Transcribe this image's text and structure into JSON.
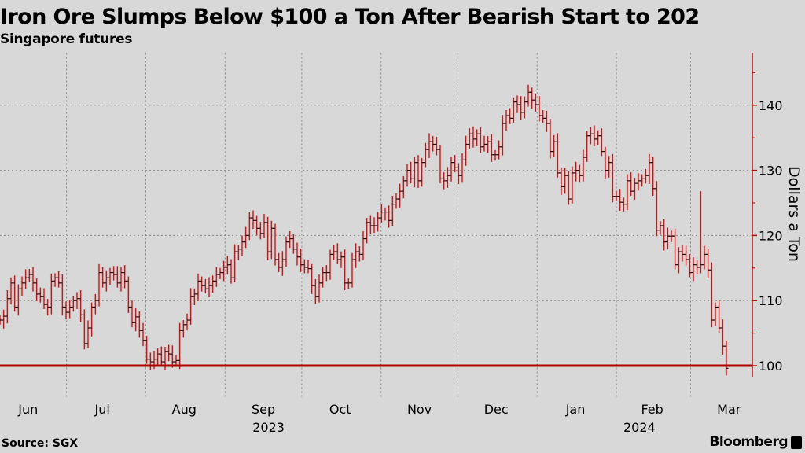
{
  "chart_data": {
    "type": "ohlc-bar",
    "title": "Iron Ore Slumps Below $100 a Ton After Bearish Start to 202",
    "subtitle": "Singapore futures",
    "source": "Source: SGX",
    "brand": "Bloomberg",
    "ylabel": "Dollars a Ton",
    "ylim": [
      99,
      148
    ],
    "yticks": [
      100,
      110,
      120,
      130,
      140
    ],
    "y_minor_ticks": [
      105,
      115,
      125,
      135,
      145
    ],
    "reference_line": 100,
    "grid": true,
    "colors": {
      "bars": "#9e1b1b",
      "glow": "#f0a0a0",
      "axis": "#b01010",
      "reference": "#b00000",
      "grid": "#888888"
    },
    "x_range": [
      "2023-06-05",
      "2024-03-19"
    ],
    "first_bar_date": "2023-06-05",
    "last_bar_date": "2024-03-15",
    "month_labels": [
      {
        "label": "Jun",
        "date": "2023-06-16"
      },
      {
        "label": "Jul",
        "date": "2023-07-15"
      },
      {
        "label": "Aug",
        "date": "2023-08-16"
      },
      {
        "label": "Sep",
        "date": "2023-09-16"
      },
      {
        "label": "Oct",
        "date": "2023-10-16"
      },
      {
        "label": "Nov",
        "date": "2023-11-16"
      },
      {
        "label": "Dec",
        "date": "2023-12-16"
      },
      {
        "label": "Jan",
        "date": "2024-01-16"
      },
      {
        "label": "Feb",
        "date": "2024-02-15"
      },
      {
        "label": "Mar",
        "date": "2024-03-16"
      }
    ],
    "year_labels": [
      {
        "label": "2023",
        "date": "2023-09-18"
      },
      {
        "label": "2024",
        "date": "2024-02-10"
      }
    ],
    "gridline_dates": [
      "2023-07-01",
      "2023-08-01",
      "2023-09-01",
      "2023-10-01",
      "2023-11-01",
      "2023-12-01",
      "2024-01-01",
      "2024-02-01",
      "2024-03-01"
    ],
    "closes": [
      107,
      107.6,
      110.3,
      112.7,
      109,
      111.8,
      112.7,
      113.5,
      114,
      112.7,
      111,
      110.6,
      109.4,
      109,
      113,
      113.5,
      112.7,
      109,
      108.2,
      109,
      110,
      110.3,
      107.8,
      103.4,
      105.8,
      109,
      110,
      114.3,
      112.7,
      113.5,
      114.3,
      114,
      112.7,
      114.3,
      113,
      109,
      106.6,
      107.5,
      105.4,
      103.9,
      101,
      100.6,
      101,
      101.8,
      100.6,
      102.2,
      101.8,
      100.6,
      100.8,
      105.4,
      106.3,
      107,
      110.6,
      111,
      113,
      112.3,
      111.8,
      112.3,
      113,
      114,
      114.3,
      115.1,
      115.5,
      113.5,
      117.5,
      117.9,
      119,
      120,
      122.7,
      122.3,
      121.1,
      120.3,
      122,
      117.5,
      121.1,
      116.3,
      115.1,
      116.3,
      119,
      119.5,
      117.9,
      116.7,
      115.5,
      115.1,
      114.9,
      112.3,
      110.6,
      112.7,
      114.3,
      114.3,
      117.1,
      117.5,
      116.3,
      116.7,
      112.7,
      112.7,
      116.3,
      117.5,
      117.1,
      119.5,
      122,
      121.5,
      121.5,
      122.7,
      123.6,
      123.6,
      122.3,
      124.8,
      125.6,
      126.8,
      128.4,
      130,
      128.7,
      131.2,
      128.4,
      131.2,
      133.2,
      134.4,
      134,
      133.2,
      128.7,
      128.4,
      129.2,
      131.2,
      130.4,
      129.2,
      131.6,
      134,
      135.6,
      134.8,
      135.6,
      133.6,
      134,
      134.4,
      132.4,
      132.4,
      133.6,
      137.2,
      138.4,
      138,
      140.5,
      140.1,
      138.9,
      140.5,
      142,
      140.8,
      140.1,
      138.4,
      138,
      137.2,
      132.9,
      134.4,
      129.6,
      127.5,
      129.2,
      125.6,
      129.6,
      130,
      129.2,
      132,
      135.3,
      135.6,
      134.8,
      135.3,
      132.9,
      130,
      131.2,
      126,
      126,
      125.1,
      124.8,
      128.4,
      126.8,
      128,
      128.4,
      128.7,
      129.2,
      131.2,
      127.2,
      120.8,
      121.5,
      119,
      119.9,
      119.9,
      115.5,
      117.5,
      117.1,
      116.3,
      114.3,
      115.5,
      115.1,
      115.5,
      117.1,
      114.7,
      107,
      109,
      105.8,
      103,
      99.6
    ],
    "high_overrides": [
      {
        "from_end": 7,
        "high": 126.8
      }
    ]
  }
}
